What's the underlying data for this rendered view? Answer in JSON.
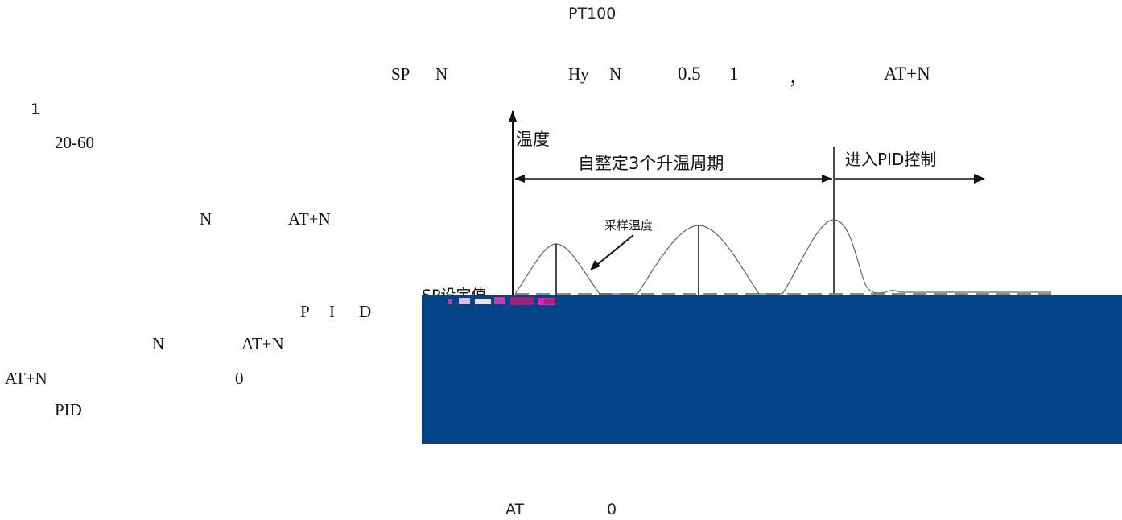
{
  "header": {
    "sensor": "PT100"
  },
  "line1": {
    "sp": "SP",
    "n1": "N",
    "hy": "Hy",
    "n2": "N",
    "v1": "0.5",
    "v2": "1",
    "comma": "，",
    "at": "AT+N"
  },
  "left": {
    "num1": "1",
    "range": "20-60",
    "n_a": "N",
    "at_a": "AT+N",
    "p": "P",
    "i": "I",
    "d": "D",
    "n_b": "N",
    "at_b": "AT+N",
    "at_c": "AT+N",
    "zero": "0",
    "pid": "PID"
  },
  "diagram": {
    "y_axis_label": "温度",
    "autotune_label": "自整定3个升温周期",
    "pid_label": "进入PID控制",
    "sample_label": "采样温度",
    "sp_label": "SP设定值",
    "panel_color": "#024487"
  },
  "footer": {
    "at": "AT",
    "zero": "0"
  }
}
